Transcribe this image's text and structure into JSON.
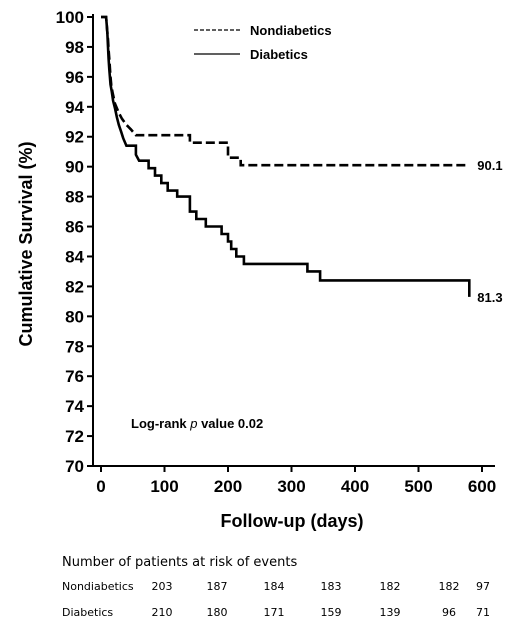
{
  "chart_data": {
    "type": "line",
    "title": "",
    "xlabel": "Follow-up (days)",
    "ylabel": "Cumulative Survival (%)",
    "xlim": [
      0,
      600
    ],
    "ylim": [
      70,
      100
    ],
    "xticks": [
      0,
      100,
      200,
      300,
      400,
      500,
      600
    ],
    "yticks": [
      70,
      72,
      74,
      76,
      78,
      80,
      82,
      84,
      86,
      88,
      90,
      92,
      94,
      96,
      98,
      100
    ],
    "grid": false,
    "legend_position": "top-center",
    "annotation": {
      "prefix": "Log-rank ",
      "italic": "p",
      "suffix": " value 0.02"
    },
    "series": [
      {
        "name": "Nondiabetics",
        "style": "dashed",
        "end_label": "90.1",
        "points": [
          [
            0,
            100
          ],
          [
            8,
            100
          ],
          [
            9,
            99.5
          ],
          [
            10,
            99
          ],
          [
            11,
            98.5
          ],
          [
            12,
            97.8
          ],
          [
            13,
            97.2
          ],
          [
            14,
            96.6
          ],
          [
            15,
            96
          ],
          [
            16,
            95.5
          ],
          [
            18,
            95
          ],
          [
            20,
            94.6
          ],
          [
            22,
            94.2
          ],
          [
            25,
            93.9
          ],
          [
            28,
            93.6
          ],
          [
            33,
            93.2
          ],
          [
            40,
            92.8
          ],
          [
            47,
            92.5
          ],
          [
            55,
            92.1
          ],
          [
            100,
            92.1
          ],
          [
            140,
            92.1
          ],
          [
            140,
            91.6
          ],
          [
            200,
            91.6
          ],
          [
            200,
            90.6
          ],
          [
            220,
            90.6
          ],
          [
            220,
            90.1
          ],
          [
            580,
            90.1
          ]
        ]
      },
      {
        "name": "Diabetics",
        "style": "solid",
        "end_label": "81.3",
        "points": [
          [
            0,
            100
          ],
          [
            8,
            100
          ],
          [
            9,
            99.5
          ],
          [
            10,
            99
          ],
          [
            11,
            98
          ],
          [
            12,
            97.2
          ],
          [
            13,
            96.5
          ],
          [
            14,
            96
          ],
          [
            15,
            95.5
          ],
          [
            17,
            95
          ],
          [
            19,
            94.4
          ],
          [
            22,
            93.9
          ],
          [
            25,
            93.3
          ],
          [
            28,
            92.8
          ],
          [
            32,
            92.3
          ],
          [
            35,
            91.9
          ],
          [
            40,
            91.4
          ],
          [
            55,
            91.4
          ],
          [
            55,
            90.8
          ],
          [
            60,
            90.4
          ],
          [
            75,
            90.4
          ],
          [
            75,
            89.9
          ],
          [
            85,
            89.9
          ],
          [
            85,
            89.4
          ],
          [
            95,
            89.4
          ],
          [
            95,
            88.9
          ],
          [
            105,
            88.9
          ],
          [
            105,
            88.4
          ],
          [
            120,
            88.4
          ],
          [
            120,
            88
          ],
          [
            140,
            88
          ],
          [
            140,
            87
          ],
          [
            150,
            87
          ],
          [
            150,
            86.5
          ],
          [
            165,
            86.5
          ],
          [
            165,
            86
          ],
          [
            190,
            86
          ],
          [
            190,
            85.5
          ],
          [
            200,
            85.5
          ],
          [
            200,
            85
          ],
          [
            205,
            85
          ],
          [
            205,
            84.5
          ],
          [
            213,
            84.5
          ],
          [
            213,
            84
          ],
          [
            225,
            84
          ],
          [
            225,
            83.5
          ],
          [
            325,
            83.5
          ],
          [
            325,
            83
          ],
          [
            345,
            83
          ],
          [
            345,
            82.4
          ],
          [
            580,
            82.4
          ],
          [
            580,
            81.3
          ]
        ]
      }
    ]
  },
  "risk_table": {
    "title": "Number of patients at risk of events",
    "rows": [
      {
        "label": "Nondiabetics",
        "values": [
          "203",
          "187",
          "184",
          "183",
          "182",
          "182",
          "97"
        ]
      },
      {
        "label": "Diabetics",
        "values": [
          "210",
          "180",
          "171",
          "159",
          "139",
          "96",
          "71"
        ]
      }
    ]
  }
}
